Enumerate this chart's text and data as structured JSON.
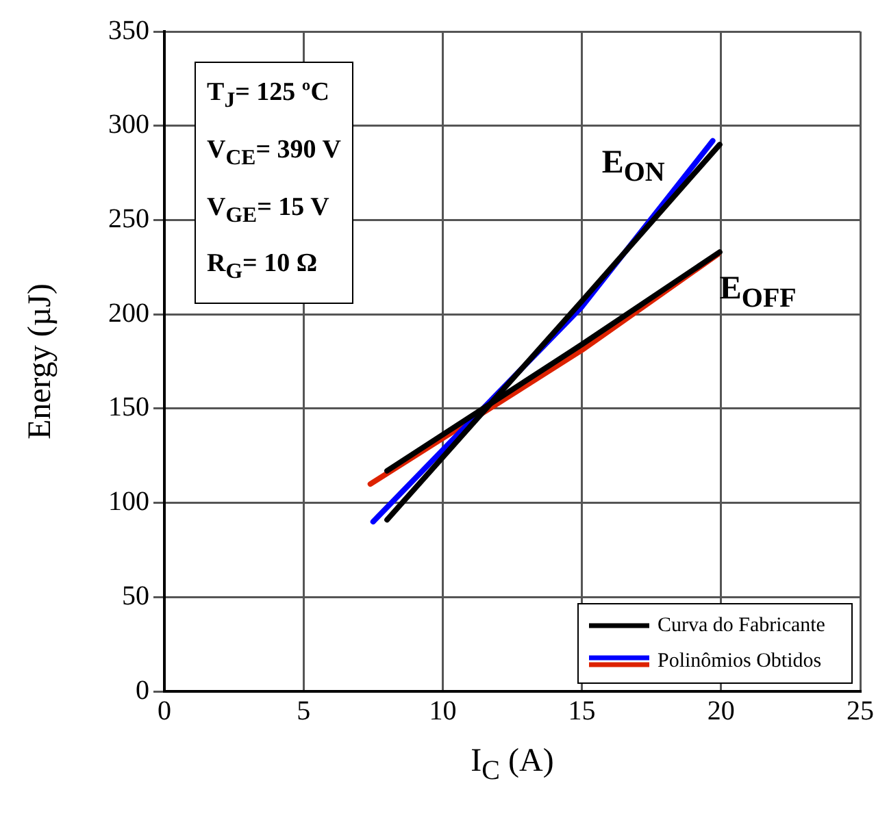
{
  "chart_data": {
    "type": "line",
    "xlabel": "I$_{C}$ (A)",
    "ylabel": "Energy (µJ)",
    "xlim": [
      0,
      25
    ],
    "xticks": [
      0,
      5,
      10,
      15,
      20,
      25
    ],
    "ylim": [
      0,
      350
    ],
    "yticks": [
      0,
      50,
      100,
      150,
      200,
      250,
      300,
      350
    ],
    "grid": true,
    "legend": "bottom right",
    "marker": "none",
    "line_style": "solid",
    "series": [
      {
        "name": "Curva do Fabricante",
        "color": "#000000",
        "x": [
          8,
          15,
          19.95
        ],
        "values": [
          91,
          207,
          290
        ]
      },
      {
        "color": "#000000",
        "x": [
          8,
          15,
          19.95
        ],
        "values": [
          117,
          184,
          233
        ]
      },
      {
        "name": "Polinômios Obtidos",
        "color": "#0000ff",
        "x": [
          7.5,
          15,
          19.7
        ],
        "values": [
          90,
          204,
          292
        ]
      },
      {
        "color": "#dd2200",
        "x": [
          7.4,
          15,
          19.9
        ],
        "values": [
          110,
          181,
          232
        ]
      }
    ],
    "annotations": [
      "T$_{J}$= 125 ºC",
      "V$_{CE}$= 390 V",
      "V$_{GE}$= 15 V",
      "R$_{G}$= 10 Ω",
      {
        "text": "E$_{ON}$",
        "x": 19.95,
        "y": 290
      },
      {
        "text": "E$_{OFF}$",
        "x": 19.95,
        "y": 233
      }
    ]
  }
}
